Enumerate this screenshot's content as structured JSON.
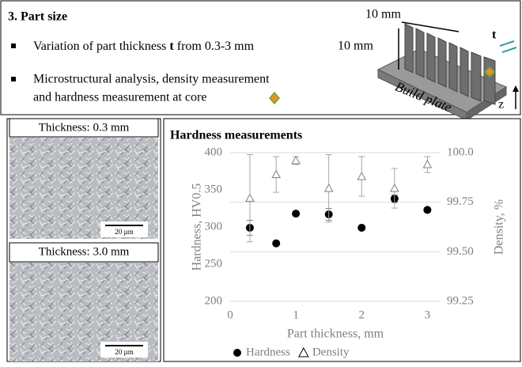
{
  "header": {
    "title": "3. Part size"
  },
  "bullets": [
    {
      "before": "Variation of part thickness ",
      "bold": "t",
      "after": " from 0.3-3 mm"
    },
    [
      "Microstructural analysis, density measurement",
      "and hardness measurement at core"
    ]
  ],
  "diagram": {
    "width_label": "10 mm",
    "height_label": "10 mm",
    "thickness_label": "t",
    "plate_label": "Build plate",
    "axis_label": "z"
  },
  "micrographs": [
    {
      "label": "Thickness: 0.3 mm",
      "scale": "20 µm"
    },
    {
      "label": "Thickness: 3.0 mm",
      "scale": "20 µm"
    }
  ],
  "chart_data": {
    "type": "scatter",
    "title": "Hardness measurements",
    "x_label": "Part thickness, mm",
    "y_label": "Hardness, HV0.5",
    "y2_label": "Density, %",
    "x": [
      0.3,
      0.7,
      1,
      1.5,
      2,
      2.5,
      3
    ],
    "series": [
      {
        "name": "Hardness",
        "color": "#000000",
        "marker": "circle",
        "values": [
          299,
          278,
          318,
          317,
          299,
          338,
          323
        ],
        "errors": [
          10,
          3,
          3,
          8,
          2,
          5,
          3
        ]
      },
      {
        "name": "Density",
        "color": "#808080",
        "marker": "triangle",
        "axis": "y2",
        "values": [
          99.77,
          99.89,
          99.96,
          99.82,
          99.88,
          99.82,
          99.94
        ],
        "errors": [
          0.22,
          0.09,
          0.02,
          0.17,
          0.1,
          0.1,
          0.04
        ]
      }
    ],
    "xlim": [
      0,
      3.2
    ],
    "xticks": [
      0,
      1,
      2,
      3
    ],
    "ylim": [
      200,
      400
    ],
    "yticks": [
      200,
      250,
      300,
      350,
      400
    ],
    "y2lim": [
      99.25,
      100
    ],
    "y2ticks": [
      99.25,
      {
        "value": 99.5,
        "label": "99.50"
      },
      99.75,
      {
        "value": 100,
        "label": "100.0"
      }
    ],
    "grid": true,
    "legend": "bottom"
  }
}
